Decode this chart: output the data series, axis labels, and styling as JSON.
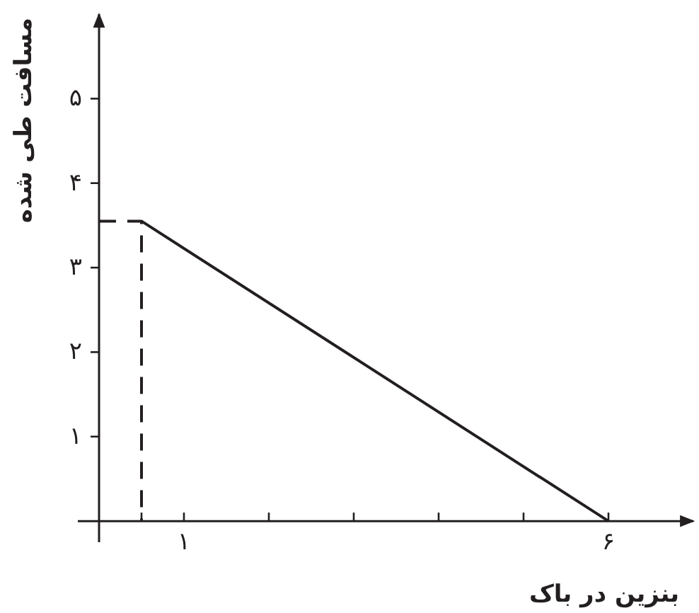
{
  "chart_data": {
    "type": "line",
    "xlabel": "بنزین در باک",
    "ylabel": "مسافت طی شده",
    "xlim": [
      -0.25,
      7
    ],
    "ylim": [
      -0.25,
      6
    ],
    "xticks": [
      {
        "value": 0.5,
        "label": null
      },
      {
        "value": 1,
        "label": "۱"
      },
      {
        "value": 2,
        "label": null
      },
      {
        "value": 3,
        "label": null
      },
      {
        "value": 4,
        "label": null
      },
      {
        "value": 5,
        "label": null
      },
      {
        "value": 6,
        "label": "۶"
      }
    ],
    "yticks": [
      {
        "value": 1,
        "label": "۱"
      },
      {
        "value": 2,
        "label": "۲"
      },
      {
        "value": 3,
        "label": "۳"
      },
      {
        "value": 4,
        "label": "۴"
      },
      {
        "value": 5,
        "label": "۵"
      }
    ],
    "grid": false,
    "series": [
      {
        "color": "#231f20",
        "x": [
          0.5,
          6
        ],
        "values": [
          3.55,
          0
        ],
        "line_style": "solid"
      },
      {
        "color": "#231f20",
        "x": [
          0,
          0.5,
          0.5
        ],
        "values": [
          3.55,
          3.55,
          0
        ],
        "line_style": "dashed"
      }
    ]
  }
}
